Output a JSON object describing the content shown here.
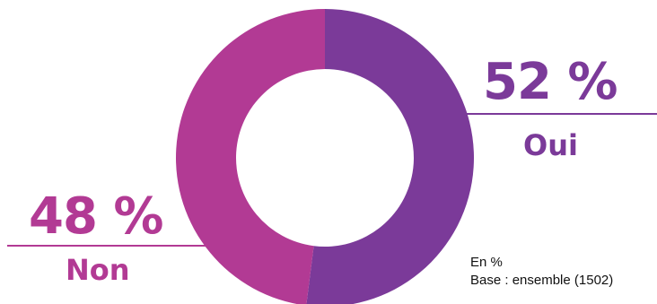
{
  "chart_data": {
    "type": "pie",
    "variant": "donut",
    "title": "",
    "slices": [
      {
        "label": "Oui",
        "value": 52,
        "value_label": "52 %",
        "color": "#7b3a99"
      },
      {
        "label": "Non",
        "value": 48,
        "value_label": "48 %",
        "color": "#b23a94"
      }
    ],
    "unit_note": "En %",
    "base_note": "Base : ensemble (1502)"
  }
}
